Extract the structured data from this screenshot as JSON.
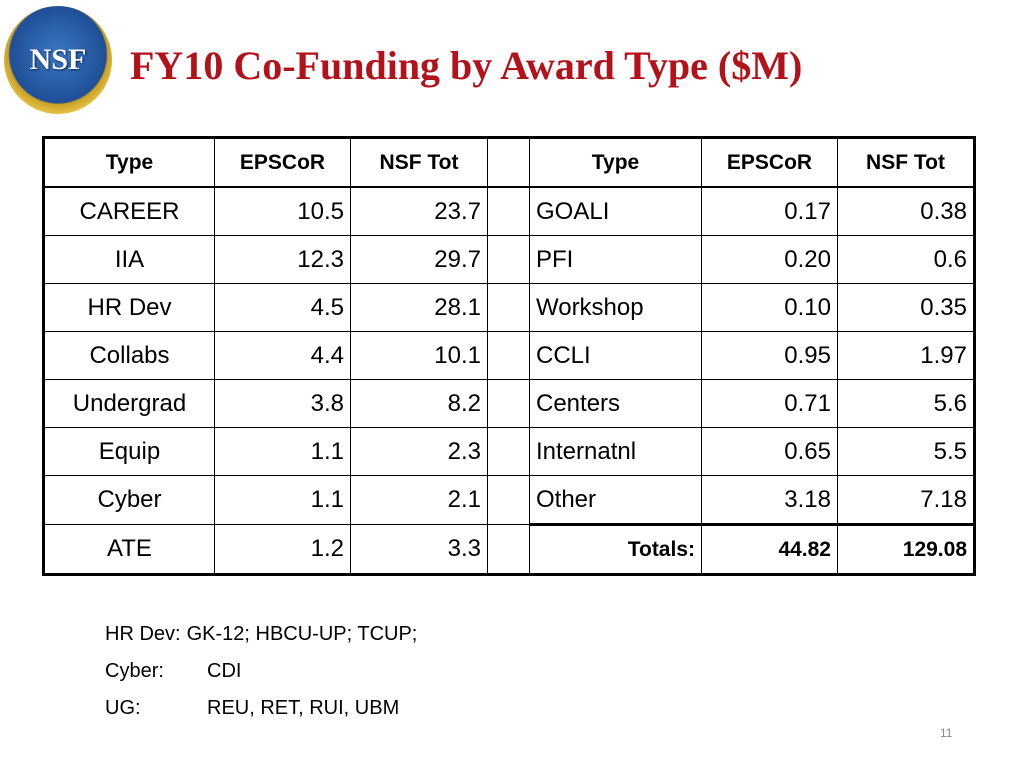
{
  "logo": "NSF",
  "title": "FY10 Co-Funding by Award Type ($M)",
  "left_table": {
    "headers": [
      "Type",
      "EPSCoR",
      "NSF Tot"
    ],
    "rows": [
      [
        "CAREER",
        "10.5",
        "23.7"
      ],
      [
        "IIA",
        "12.3",
        "29.7"
      ],
      [
        "HR Dev",
        "4.5",
        "28.1"
      ],
      [
        "Collabs",
        "4.4",
        "10.1"
      ],
      [
        "Undergrad",
        "3.8",
        "8.2"
      ],
      [
        "Equip",
        "1.1",
        "2.3"
      ],
      [
        "Cyber",
        "1.1",
        "2.1"
      ],
      [
        "ATE",
        "1.2",
        "3.3"
      ]
    ]
  },
  "right_table": {
    "headers": [
      "Type",
      "EPSCoR",
      "NSF Tot"
    ],
    "rows": [
      [
        "GOALI",
        "0.17",
        "0.38"
      ],
      [
        "PFI",
        "0.20",
        "0.6"
      ],
      [
        "Workshop",
        "0.10",
        "0.35"
      ],
      [
        "CCLI",
        "0.95",
        "1.97"
      ],
      [
        "Centers",
        "0.71",
        "5.6"
      ],
      [
        "Internatnl",
        "0.65",
        "5.5"
      ],
      [
        "Other",
        "3.18",
        "7.18"
      ]
    ],
    "totals": [
      "Totals:",
      "44.82",
      "129.08"
    ]
  },
  "notes": [
    [
      "HR Dev:",
      "GK-12; HBCU-UP; TCUP;"
    ],
    [
      "Cyber:",
      "CDI"
    ],
    [
      "UG:",
      "REU, RET, RUI, UBM"
    ]
  ],
  "page_number": "11"
}
